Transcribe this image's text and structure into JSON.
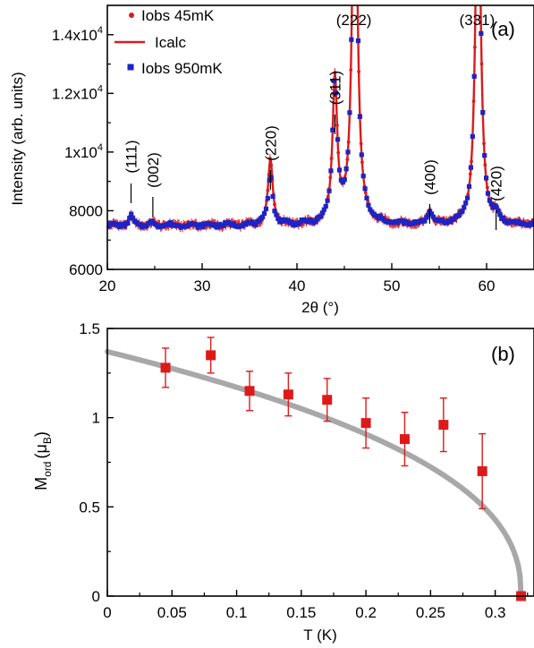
{
  "chart_data": [
    {
      "type": "scatter",
      "panel_label": "(a)",
      "xlabel": "2θ (°)",
      "ylabel": "Intensity (arb. units)",
      "xlim": [
        20,
        65
      ],
      "ylim": [
        6000,
        15000
      ],
      "x_ticks": [
        "20",
        "30",
        "40",
        "50",
        "60"
      ],
      "y_ticks": [
        "6000",
        "8000",
        "1x10",
        "1.2x10",
        "1.4x10"
      ],
      "y_tick_exponent": "4",
      "legend": [
        "Iobs 45mK",
        "Icalc",
        "Iobs 950mK"
      ],
      "colors": {
        "iobs_45mK": "#dd1a1a",
        "icalc": "#d81c1c",
        "iobs_950mK": "#1c24c6"
      },
      "annotations": [
        {
          "text": "(111)",
          "x": 22.5
        },
        {
          "text": "(002)",
          "x": 24.8
        },
        {
          "text": "(220)",
          "x": 37.2
        },
        {
          "text": "(311)",
          "x": 44.0
        },
        {
          "text": "(222)",
          "x": 46.0
        },
        {
          "text": "(400)",
          "x": 54.0
        },
        {
          "text": "(331)",
          "x": 59.0
        },
        {
          "text": "(420)",
          "x": 61.0
        }
      ],
      "background_level": 7500,
      "peaks": [
        {
          "x": 22.5,
          "height": 300,
          "width": 0.25
        },
        {
          "x": 24.8,
          "height": 80,
          "width": 0.25
        },
        {
          "x": 37.2,
          "height": 2200,
          "width": 0.3
        },
        {
          "x": 44.0,
          "height": 4900,
          "width": 0.3
        },
        {
          "x": 46.1,
          "height": 14000,
          "width": 0.32
        },
        {
          "x": 54.0,
          "height": 450,
          "width": 0.3
        },
        {
          "x": 59.1,
          "height": 13000,
          "width": 0.32
        },
        {
          "x": 61.0,
          "height": 250,
          "width": 0.3
        }
      ]
    },
    {
      "type": "scatter",
      "panel_label": "(b)",
      "xlabel": "T (K)",
      "ylabel_main": "M",
      "ylabel_sub": "ord",
      "ylabel_paren_open": "(μ",
      "ylabel_paren_sub": "B",
      "ylabel_paren_close": ")",
      "xlim": [
        0,
        0.33
      ],
      "ylim": [
        0,
        1.5
      ],
      "x_ticks": [
        "0",
        "0.05",
        "0.1",
        "0.15",
        "0.2",
        "0.25",
        "0.3"
      ],
      "y_ticks": [
        "0",
        "0.5",
        "1",
        "1.5"
      ],
      "colors": {
        "points": "#dd1a1a",
        "fit": "#a8a8a8"
      },
      "series": [
        {
          "name": "M_ord",
          "x": [
            0.045,
            0.08,
            0.11,
            0.14,
            0.17,
            0.2,
            0.23,
            0.26,
            0.29,
            0.32
          ],
          "y": [
            1.28,
            1.35,
            1.15,
            1.13,
            1.1,
            0.97,
            0.88,
            0.96,
            0.7,
            0.0
          ],
          "err": [
            0.11,
            0.1,
            0.11,
            0.12,
            0.12,
            0.14,
            0.15,
            0.15,
            0.21,
            0.0
          ]
        }
      ],
      "fit": {
        "M0": 1.37,
        "Tc": 0.32,
        "exponent": 0.42
      }
    }
  ]
}
